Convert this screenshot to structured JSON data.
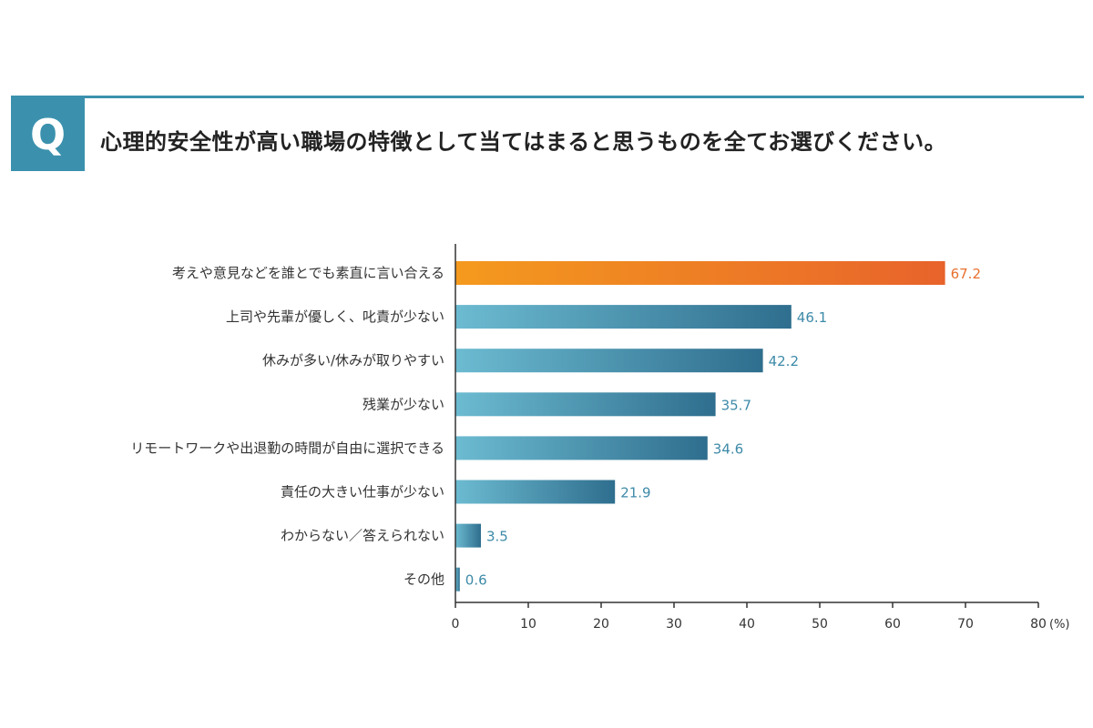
{
  "question": {
    "badge": "Q",
    "text": "心理的安全性が高い職場の特徴として当てはまると思うものを全てお選びください。",
    "accent_color": "#3b91ad"
  },
  "chart_data": {
    "type": "bar",
    "orientation": "horizontal",
    "categories": [
      "考えや意見などを誰とでも素直に言い合える",
      "上司や先輩が優しく、叱責が少ない",
      "休みが多い/休みが取りやすい",
      "残業が少ない",
      "リモートワークや出退勤の時間が自由に選択できる",
      "責任の大きい仕事が少ない",
      "わからない／答えられない",
      "その他"
    ],
    "values": [
      67.2,
      46.1,
      42.2,
      35.7,
      34.6,
      21.9,
      3.5,
      0.6
    ],
    "value_labels": [
      "67.2",
      "46.1",
      "42.2",
      "35.7",
      "34.6",
      "21.9",
      "3.5",
      "0.6"
    ],
    "xlim": [
      0,
      80
    ],
    "xticks": [
      "0",
      "10",
      "20",
      "30",
      "40",
      "50",
      "60",
      "70",
      "80"
    ],
    "x_unit": "(%)",
    "grid": false,
    "highlight_index": 0,
    "colors": {
      "highlight_start": "#f49a1e",
      "highlight_end": "#e8632b",
      "highlight_label": "#e8702f",
      "bar_start": "#6cbbd1",
      "bar_end": "#2f6e8e",
      "label": "#3d8aa8",
      "axis": "#333333"
    }
  }
}
